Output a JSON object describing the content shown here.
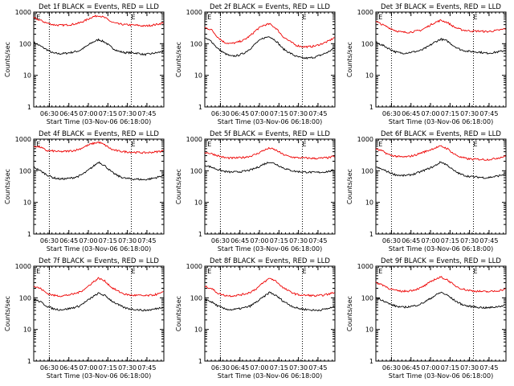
{
  "chart_data": [
    {
      "type": "line",
      "title": "Det 1f BLACK = Events, RED = LLD",
      "xlabel": "Start Time (03-Nov-06 06:18:00)",
      "ylabel": "Counts/sec",
      "yscale": "log",
      "ylim": [
        1,
        1000
      ],
      "x_ticks": [
        "06:30",
        "06:45",
        "07:00",
        "07:15",
        "07:30",
        "07:45"
      ],
      "y_ticks": [
        "1",
        "10",
        "100",
        "1000"
      ],
      "x_minutes": [
        0,
        5,
        10,
        15,
        20,
        25,
        30,
        35,
        40,
        45,
        50,
        55,
        60,
        65,
        70,
        75,
        80,
        85,
        90,
        95,
        100
      ],
      "series": [
        {
          "name": "Events",
          "color": "#000000",
          "values": [
            110,
            85,
            65,
            50,
            48,
            50,
            54,
            60,
            80,
            110,
            135,
            110,
            75,
            58,
            52,
            52,
            50,
            45,
            48,
            52,
            58
          ]
        },
        {
          "name": "LLD",
          "color": "#ee0000",
          "values": [
            650,
            550,
            450,
            400,
            380,
            390,
            410,
            450,
            550,
            700,
            780,
            650,
            480,
            420,
            400,
            390,
            380,
            360,
            380,
            410,
            460
          ]
        }
      ],
      "annotations": [
        {
          "label": "E",
          "x": 2
        },
        {
          "label": "E",
          "x": 75
        }
      ],
      "markers_x": [
        12,
        75
      ]
    },
    {
      "type": "line",
      "title": "Det 2f BLACK = Events, RED = LLD",
      "xlabel": "Start Time (03-Nov-06 06:18:00)",
      "ylabel": "Counts/sec",
      "yscale": "log",
      "ylim": [
        1,
        1000
      ],
      "x_ticks": [
        "06:30",
        "06:45",
        "07:00",
        "07:15",
        "07:30",
        "07:45"
      ],
      "y_ticks": [
        "1",
        "10",
        "100",
        "1000"
      ],
      "x_minutes": [
        0,
        5,
        10,
        15,
        20,
        25,
        30,
        35,
        40,
        45,
        50,
        55,
        60,
        65,
        70,
        75,
        80,
        85,
        90,
        95,
        100
      ],
      "series": [
        {
          "name": "Events",
          "color": "#000000",
          "values": [
            150,
            120,
            70,
            50,
            40,
            42,
            50,
            70,
            110,
            150,
            170,
            120,
            70,
            52,
            40,
            35,
            35,
            38,
            45,
            55,
            75
          ]
        },
        {
          "name": "LLD",
          "color": "#ee0000",
          "values": [
            320,
            280,
            160,
            110,
            100,
            110,
            130,
            180,
            280,
            380,
            420,
            300,
            170,
            120,
            90,
            80,
            80,
            85,
            100,
            120,
            160
          ]
        }
      ],
      "annotations": [
        {
          "label": "E",
          "x": 2
        },
        {
          "label": "E",
          "x": 75
        }
      ],
      "markers_x": [
        12,
        75
      ]
    },
    {
      "type": "line",
      "title": "Det 3f BLACK = Events, RED = LLD",
      "xlabel": "Start Time (03-Nov-06 06:18:00)",
      "ylabel": "Counts/sec",
      "yscale": "log",
      "ylim": [
        1,
        1000
      ],
      "x_ticks": [
        "06:30",
        "06:45",
        "07:00",
        "07:15",
        "07:30",
        "07:45"
      ],
      "y_ticks": [
        "1",
        "10",
        "100",
        "1000"
      ],
      "x_minutes": [
        0,
        5,
        10,
        15,
        20,
        25,
        30,
        35,
        40,
        45,
        50,
        55,
        60,
        65,
        70,
        75,
        80,
        85,
        90,
        95,
        100
      ],
      "series": [
        {
          "name": "Events",
          "color": "#000000",
          "values": [
            110,
            90,
            70,
            55,
            50,
            52,
            56,
            62,
            80,
            110,
            140,
            120,
            85,
            65,
            58,
            56,
            54,
            50,
            52,
            56,
            62
          ]
        },
        {
          "name": "LLD",
          "color": "#ee0000",
          "values": [
            500,
            400,
            320,
            260,
            230,
            230,
            245,
            270,
            350,
            460,
            550,
            470,
            340,
            280,
            260,
            250,
            250,
            240,
            250,
            270,
            300
          ]
        }
      ],
      "annotations": [
        {
          "label": "E",
          "x": 2
        },
        {
          "label": "E",
          "x": 75
        }
      ],
      "markers_x": [
        12,
        75
      ]
    },
    {
      "type": "line",
      "title": "Det 4f BLACK = Events, RED = LLD",
      "xlabel": "Start Time (03-Nov-06 06:18:00)",
      "ylabel": "Counts/sec",
      "yscale": "log",
      "ylim": [
        1,
        1000
      ],
      "x_ticks": [
        "06:30",
        "06:45",
        "07:00",
        "07:15",
        "07:30",
        "07:45"
      ],
      "y_ticks": [
        "1",
        "10",
        "100",
        "1000"
      ],
      "x_minutes": [
        0,
        5,
        10,
        15,
        20,
        25,
        30,
        35,
        40,
        45,
        50,
        55,
        60,
        65,
        70,
        75,
        80,
        85,
        90,
        95,
        100
      ],
      "series": [
        {
          "name": "Events",
          "color": "#000000",
          "values": [
            130,
            100,
            75,
            60,
            55,
            56,
            60,
            68,
            90,
            130,
            190,
            140,
            90,
            68,
            58,
            55,
            54,
            52,
            56,
            62,
            72
          ]
        },
        {
          "name": "LLD",
          "color": "#ee0000",
          "values": [
            600,
            560,
            430,
            420,
            400,
            410,
            430,
            480,
            600,
            720,
            800,
            640,
            470,
            420,
            400,
            390,
            380,
            370,
            380,
            400,
            430
          ]
        }
      ],
      "annotations": [
        {
          "label": "E",
          "x": 2
        },
        {
          "label": "E",
          "x": 75
        }
      ],
      "markers_x": [
        12,
        75
      ]
    },
    {
      "type": "line",
      "title": "Det 5f BLACK = Events, RED = LLD",
      "xlabel": "Start Time (03-Nov-06 06:18:00)",
      "ylabel": "Counts/sec",
      "yscale": "log",
      "ylim": [
        1,
        1000
      ],
      "x_ticks": [
        "06:30",
        "06:45",
        "07:00",
        "07:15",
        "07:30",
        "07:45"
      ],
      "y_ticks": [
        "1",
        "10",
        "100",
        "1000"
      ],
      "x_minutes": [
        0,
        5,
        10,
        15,
        20,
        25,
        30,
        35,
        40,
        45,
        50,
        55,
        60,
        65,
        70,
        75,
        80,
        85,
        90,
        95,
        100
      ],
      "series": [
        {
          "name": "Events",
          "color": "#000000",
          "values": [
            150,
            130,
            110,
            95,
            90,
            92,
            96,
            105,
            125,
            160,
            190,
            160,
            125,
            105,
            95,
            92,
            90,
            88,
            90,
            95,
            105
          ]
        },
        {
          "name": "LLD",
          "color": "#ee0000",
          "values": [
            380,
            350,
            300,
            260,
            250,
            255,
            265,
            290,
            340,
            440,
            520,
            440,
            330,
            280,
            260,
            255,
            250,
            245,
            250,
            260,
            285
          ]
        }
      ],
      "annotations": [
        {
          "label": "E",
          "x": 2
        },
        {
          "label": "E",
          "x": 75
        }
      ],
      "markers_x": [
        12,
        75
      ]
    },
    {
      "type": "line",
      "title": "Det 6f BLACK = Events, RED = LLD",
      "xlabel": "Start Time (03-Nov-06 06:18:00)",
      "ylabel": "Counts/sec",
      "yscale": "log",
      "ylim": [
        1,
        1000
      ],
      "x_ticks": [
        "06:30",
        "06:45",
        "07:00",
        "07:15",
        "07:30",
        "07:45"
      ],
      "y_ticks": [
        "1",
        "10",
        "100",
        "1000"
      ],
      "x_minutes": [
        0,
        5,
        10,
        15,
        20,
        25,
        30,
        35,
        40,
        45,
        50,
        55,
        60,
        65,
        70,
        75,
        80,
        85,
        90,
        95,
        100
      ],
      "series": [
        {
          "name": "Events",
          "color": "#000000",
          "values": [
            130,
            110,
            90,
            75,
            70,
            72,
            80,
            95,
            115,
            140,
            190,
            150,
            100,
            78,
            68,
            64,
            62,
            60,
            64,
            70,
            80
          ]
        },
        {
          "name": "LLD",
          "color": "#ee0000",
          "values": [
            480,
            420,
            320,
            290,
            270,
            280,
            310,
            370,
            430,
            520,
            600,
            500,
            340,
            270,
            240,
            230,
            230,
            225,
            235,
            260,
            290
          ]
        }
      ],
      "annotations": [
        {
          "label": "E",
          "x": 2
        },
        {
          "label": "E",
          "x": 75
        }
      ],
      "markers_x": [
        12,
        75
      ]
    },
    {
      "type": "line",
      "title": "Det 7f BLACK = Events, RED = LLD",
      "xlabel": "Start Time (03-Nov-06 06:18:00)",
      "ylabel": "Counts/sec",
      "yscale": "log",
      "ylim": [
        1,
        1000
      ],
      "x_ticks": [
        "06:30",
        "06:45",
        "07:00",
        "07:15",
        "07:30",
        "07:45"
      ],
      "y_ticks": [
        "1",
        "10",
        "100",
        "1000"
      ],
      "x_minutes": [
        0,
        5,
        10,
        15,
        20,
        25,
        30,
        35,
        40,
        45,
        50,
        55,
        60,
        65,
        70,
        75,
        80,
        85,
        90,
        95,
        100
      ],
      "series": [
        {
          "name": "Events",
          "color": "#000000",
          "values": [
            90,
            75,
            55,
            45,
            42,
            44,
            48,
            55,
            75,
            105,
            140,
            115,
            80,
            60,
            48,
            44,
            42,
            40,
            42,
            46,
            52
          ]
        },
        {
          "name": "LLD",
          "color": "#ee0000",
          "values": [
            230,
            200,
            140,
            120,
            115,
            120,
            130,
            150,
            200,
            300,
            420,
            330,
            210,
            160,
            130,
            120,
            120,
            115,
            120,
            130,
            150
          ]
        }
      ],
      "annotations": [
        {
          "label": "E",
          "x": 2
        },
        {
          "label": "E",
          "x": 75
        }
      ],
      "markers_x": [
        12,
        75
      ]
    },
    {
      "type": "line",
      "title": "Det 8f BLACK = Events, RED = LLD",
      "xlabel": "Start Time (03-Nov-06 06:18:00)",
      "ylabel": "Counts/sec",
      "yscale": "log",
      "ylim": [
        1,
        1000
      ],
      "x_ticks": [
        "06:30",
        "06:45",
        "07:00",
        "07:15",
        "07:30",
        "07:45"
      ],
      "y_ticks": [
        "1",
        "10",
        "100",
        "1000"
      ],
      "x_minutes": [
        0,
        5,
        10,
        15,
        20,
        25,
        30,
        35,
        40,
        45,
        50,
        55,
        60,
        65,
        70,
        75,
        80,
        85,
        90,
        95,
        100
      ],
      "series": [
        {
          "name": "Events",
          "color": "#000000",
          "values": [
            90,
            75,
            55,
            45,
            42,
            44,
            48,
            55,
            75,
            105,
            150,
            115,
            80,
            60,
            48,
            44,
            42,
            40,
            42,
            46,
            52
          ]
        },
        {
          "name": "LLD",
          "color": "#ee0000",
          "values": [
            230,
            200,
            140,
            120,
            115,
            120,
            130,
            150,
            200,
            300,
            420,
            330,
            210,
            160,
            130,
            120,
            120,
            115,
            120,
            130,
            150
          ]
        }
      ],
      "annotations": [
        {
          "label": "E",
          "x": 2
        },
        {
          "label": "E",
          "x": 75
        }
      ],
      "markers_x": [
        12,
        75
      ]
    },
    {
      "type": "line",
      "title": "Det 9f BLACK = Events, RED = LLD",
      "xlabel": "Start Time (03-Nov-06 06:18:00)",
      "ylabel": "Counts/sec",
      "yscale": "log",
      "ylim": [
        1,
        1000
      ],
      "x_ticks": [
        "06:30",
        "06:45",
        "07:00",
        "07:15",
        "07:30",
        "07:45"
      ],
      "y_ticks": [
        "1",
        "10",
        "100",
        "1000"
      ],
      "x_minutes": [
        0,
        5,
        10,
        15,
        20,
        25,
        30,
        35,
        40,
        45,
        50,
        55,
        60,
        65,
        70,
        75,
        80,
        85,
        90,
        95,
        100
      ],
      "series": [
        {
          "name": "Events",
          "color": "#000000",
          "values": [
            100,
            85,
            65,
            55,
            50,
            52,
            56,
            65,
            85,
            115,
            150,
            120,
            85,
            65,
            55,
            52,
            50,
            48,
            50,
            54,
            60
          ]
        },
        {
          "name": "LLD",
          "color": "#ee0000",
          "values": [
            300,
            260,
            200,
            170,
            160,
            165,
            180,
            210,
            280,
            380,
            450,
            370,
            250,
            200,
            175,
            165,
            160,
            155,
            160,
            170,
            190
          ]
        }
      ],
      "annotations": [
        {
          "label": "E",
          "x": 2
        },
        {
          "label": "E",
          "x": 75
        }
      ],
      "markers_x": [
        12,
        75
      ]
    }
  ]
}
